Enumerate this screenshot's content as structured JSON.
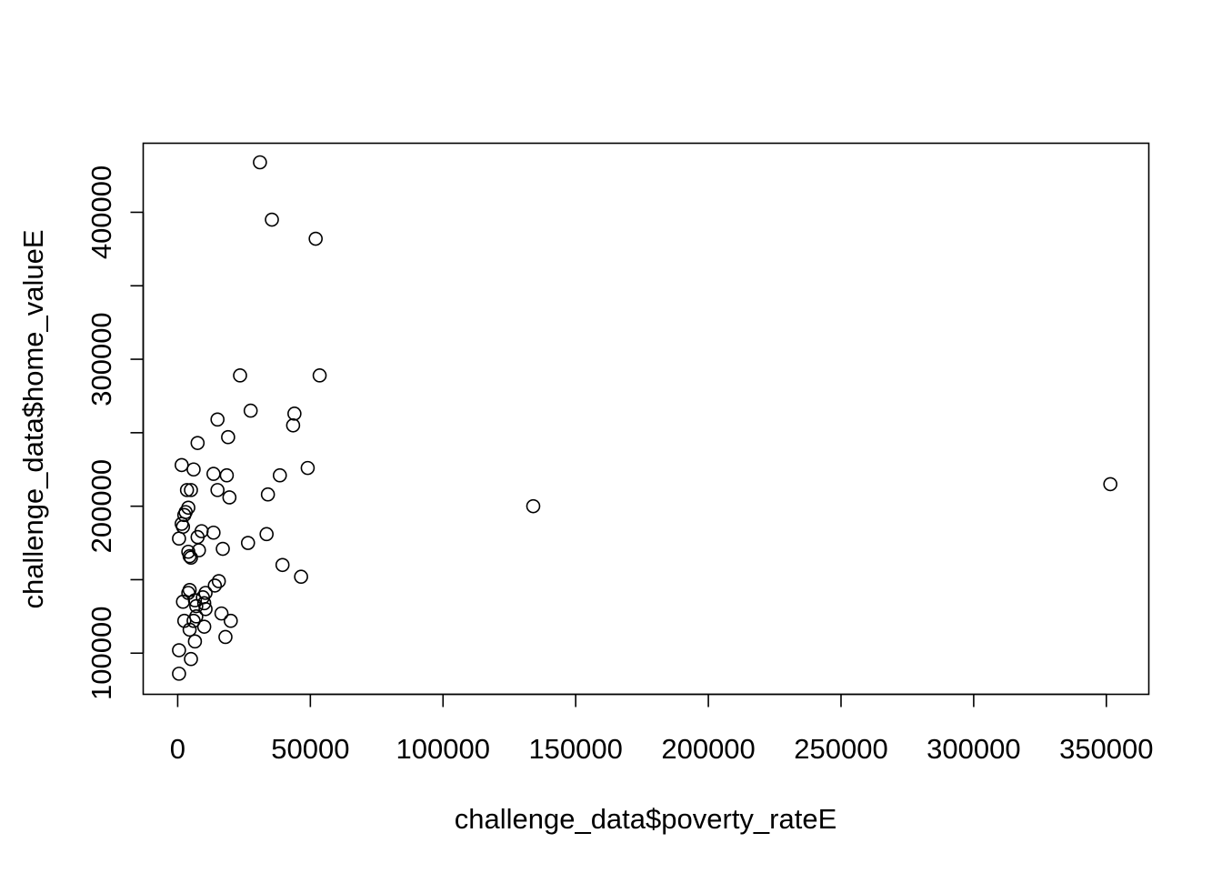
{
  "chart_data": {
    "type": "scatter",
    "title": "",
    "xlabel": "challenge_data$poverty_rateE",
    "ylabel": "challenge_data$home_valueE",
    "xlim": [
      -13000,
      366000
    ],
    "ylim": [
      72000,
      447000
    ],
    "x_ticks": [
      0,
      50000,
      100000,
      150000,
      200000,
      250000,
      300000,
      350000
    ],
    "x_tick_labels": [
      "0",
      "50000",
      "100000",
      "150000",
      "200000",
      "250000",
      "300000",
      "350000"
    ],
    "y_ticks": [
      100000,
      150000,
      200000,
      250000,
      300000,
      350000,
      400000
    ],
    "y_tick_labels": [
      "100000",
      "",
      "200000",
      "",
      "300000",
      "",
      "400000"
    ],
    "grid": false,
    "legend": "none",
    "marker": "open-circle",
    "points": [
      [
        31000,
        434000
      ],
      [
        35500,
        395000
      ],
      [
        52000,
        382000
      ],
      [
        23500,
        289000
      ],
      [
        53500,
        289000
      ],
      [
        27500,
        265000
      ],
      [
        44000,
        263000
      ],
      [
        43500,
        255000
      ],
      [
        15000,
        259000
      ],
      [
        19000,
        247000
      ],
      [
        7500,
        243000
      ],
      [
        49000,
        226000
      ],
      [
        1500,
        228000
      ],
      [
        6000,
        225000
      ],
      [
        13500,
        222000
      ],
      [
        18500,
        221000
      ],
      [
        38500,
        221000
      ],
      [
        3500,
        211000
      ],
      [
        5000,
        211000
      ],
      [
        15000,
        211000
      ],
      [
        34000,
        208000
      ],
      [
        19500,
        206000
      ],
      [
        134000,
        200000
      ],
      [
        351500,
        215000
      ],
      [
        4000,
        199000
      ],
      [
        3000,
        196000
      ],
      [
        2500,
        194000
      ],
      [
        1500,
        188000
      ],
      [
        2000,
        186000
      ],
      [
        9000,
        183000
      ],
      [
        13500,
        182000
      ],
      [
        33500,
        181000
      ],
      [
        7500,
        179000
      ],
      [
        500,
        178000
      ],
      [
        26500,
        175000
      ],
      [
        17000,
        171000
      ],
      [
        8000,
        170000
      ],
      [
        4000,
        169000
      ],
      [
        4500,
        166000
      ],
      [
        5000,
        165000
      ],
      [
        39500,
        160000
      ],
      [
        46500,
        152000
      ],
      [
        15500,
        149000
      ],
      [
        14000,
        146000
      ],
      [
        4500,
        143000
      ],
      [
        4000,
        141000
      ],
      [
        10500,
        141000
      ],
      [
        9500,
        138000
      ],
      [
        6500,
        136000
      ],
      [
        10000,
        134000
      ],
      [
        2000,
        135000
      ],
      [
        7000,
        132000
      ],
      [
        10500,
        130000
      ],
      [
        16500,
        127000
      ],
      [
        7000,
        125000
      ],
      [
        6000,
        122000
      ],
      [
        2500,
        122000
      ],
      [
        20000,
        122000
      ],
      [
        10000,
        118000
      ],
      [
        4500,
        116000
      ],
      [
        18000,
        111000
      ],
      [
        6500,
        108000
      ],
      [
        500,
        102000
      ],
      [
        5000,
        96000
      ],
      [
        500,
        86000
      ]
    ]
  }
}
